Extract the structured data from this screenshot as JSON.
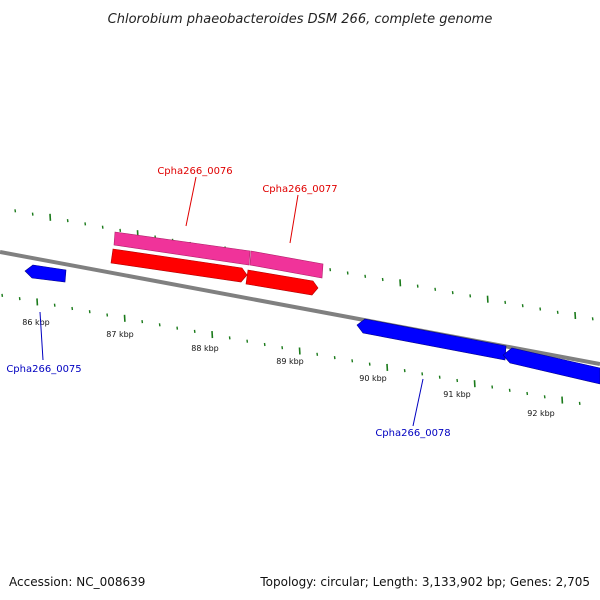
{
  "title": "Chlorobium phaeobacteroides DSM 266, complete genome",
  "footer": {
    "accession": "Accession: NC_008639",
    "summary": "Topology: circular; Length: 3,133,902 bp; Genes: 2,705"
  },
  "colors": {
    "backbone": "#808080",
    "tick": "#1a7a1a",
    "forward_label": "#e00000",
    "reverse_label": "#0000c0",
    "cds_forward": "#ff0000",
    "gene_forward": "#f0339a",
    "cds_reverse": "#0000ff"
  },
  "scale_labels": [
    "86 kbp",
    "87 kbp",
    "88 kbp",
    "89 kbp",
    "90 kbp",
    "91 kbp",
    "92 kbp"
  ],
  "genes": [
    {
      "label": "Cpha266_0075",
      "strand": "reverse",
      "color_key": "reverse_label"
    },
    {
      "label": "Cpha266_0076",
      "strand": "forward",
      "color_key": "forward_label"
    },
    {
      "label": "Cpha266_0077",
      "strand": "forward",
      "color_key": "forward_label"
    },
    {
      "label": "Cpha266_0078",
      "strand": "reverse",
      "color_key": "reverse_label"
    }
  ]
}
